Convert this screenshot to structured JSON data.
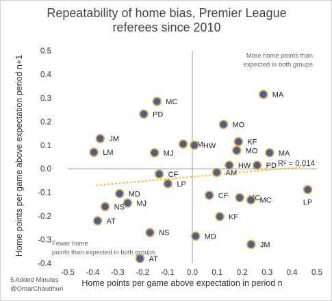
{
  "chart_data": {
    "type": "scatter",
    "title_lines": [
      "Repeatability of home bias, Premier League",
      "referees since 2010"
    ],
    "xlabel": "Home points per game above expectation in period n",
    "ylabel": "Home points per game above expectation period n+1",
    "xlim": [
      -0.5,
      0.5
    ],
    "ylim": [
      -0.4,
      0.5
    ],
    "x_ticks": [
      "-0.5",
      "-0.4",
      "-0.3",
      "-0.2",
      "-0.1",
      "0.0",
      "0.1",
      "0.2",
      "0.3",
      "0.4",
      "0.5"
    ],
    "y_ticks": [
      "0.5",
      "0.4",
      "0.3",
      "0.2",
      "0.1",
      "0.0",
      "-0.1",
      "-0.2",
      "-0.3",
      "-0.4"
    ],
    "grid": false,
    "points": [
      {
        "label": "MA",
        "x": 0.285,
        "y": 0.315
      },
      {
        "label": "MC",
        "x": -0.142,
        "y": 0.285
      },
      {
        "label": "PD",
        "x": -0.195,
        "y": 0.232
      },
      {
        "label": "MO",
        "x": 0.125,
        "y": 0.188
      },
      {
        "label": "JM",
        "x": -0.37,
        "y": 0.128
      },
      {
        "label": "KF",
        "x": 0.185,
        "y": 0.115
      },
      {
        "label": "AM",
        "x": -0.037,
        "y": 0.105
      },
      {
        "label": "HW",
        "x": 0.008,
        "y": 0.1
      },
      {
        "label": "MO",
        "x": 0.178,
        "y": 0.078
      },
      {
        "label": "LM",
        "x": -0.395,
        "y": 0.07
      },
      {
        "label": "MJ",
        "x": -0.152,
        "y": 0.068
      },
      {
        "label": "MA",
        "x": 0.31,
        "y": 0.068
      },
      {
        "label": "HW",
        "x": 0.148,
        "y": 0.015
      },
      {
        "label": "PD",
        "x": 0.26,
        "y": 0.015
      },
      {
        "label": "AM",
        "x": 0.098,
        "y": -0.015
      },
      {
        "label": "CF",
        "x": -0.133,
        "y": -0.022
      },
      {
        "label": "LP",
        "x": -0.098,
        "y": -0.063
      },
      {
        "label": "LP",
        "x": 0.463,
        "y": -0.088
      },
      {
        "label": "MD",
        "x": -0.292,
        "y": -0.105
      },
      {
        "label": "CF",
        "x": 0.068,
        "y": -0.112
      },
      {
        "label": "MC",
        "x": 0.19,
        "y": -0.122
      },
      {
        "label": "MC",
        "x": 0.235,
        "y": -0.132
      },
      {
        "label": "MJ",
        "x": -0.26,
        "y": -0.145
      },
      {
        "label": "NS",
        "x": -0.35,
        "y": -0.16
      },
      {
        "label": "KF",
        "x": 0.11,
        "y": -0.202
      },
      {
        "label": "AT",
        "x": -0.38,
        "y": -0.22
      },
      {
        "label": "NS",
        "x": -0.17,
        "y": -0.27
      },
      {
        "label": "MD",
        "x": 0.013,
        "y": -0.285
      },
      {
        "label": "JM",
        "x": 0.236,
        "y": -0.32
      },
      {
        "label": "AT",
        "x": -0.21,
        "y": -0.38
      }
    ],
    "trendline": {
      "x1": -0.385,
      "y1": -0.07,
      "x2": 0.46,
      "y2": 0.01
    },
    "r_squared_label": "R² = 0.014",
    "annotations": {
      "top_right": [
        "More home points than",
        "expected in both groups"
      ],
      "bottom_left": [
        "Fewer home",
        "points than expected in both groups"
      ]
    },
    "colors": {
      "point_fill": "#4a5f96",
      "point_stroke": "#e0a43a",
      "trendline": "#f2c21a",
      "axis": "#999999"
    }
  },
  "credit": {
    "line1": "5 Added Minutes",
    "line2": "@OmarChaudhuri"
  }
}
